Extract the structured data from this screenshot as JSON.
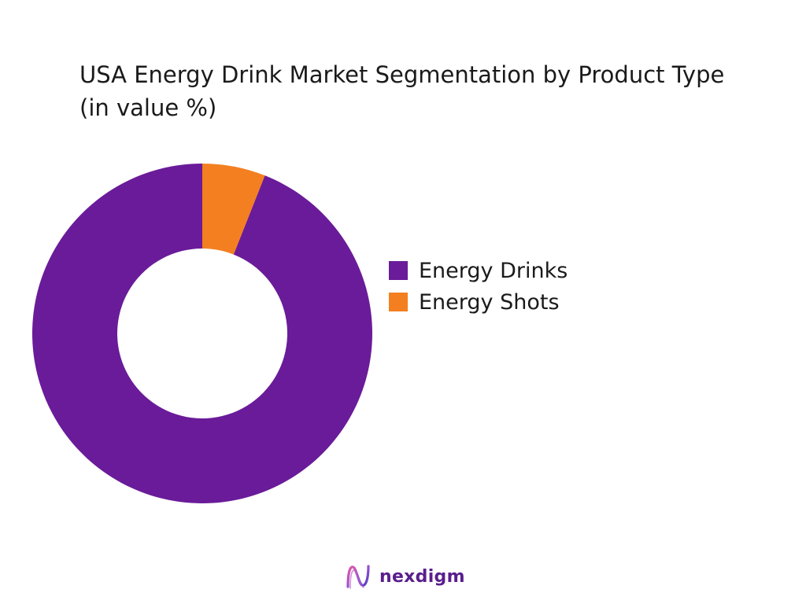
{
  "chart_data": {
    "type": "pie",
    "donut": true,
    "title": "USA Energy Drink Market Segmentation by Product Type (in value %)",
    "categories": [
      "Energy Drinks",
      "Energy Shots"
    ],
    "values": [
      94,
      6
    ],
    "colors": [
      "#6a1b99",
      "#f47f20"
    ],
    "start_angle_deg": 0,
    "direction": "counter-clockwise",
    "legend": "right"
  },
  "brand": {
    "name": "nexdigm",
    "logo_icon": "nexdigm-wave-logo-icon"
  }
}
